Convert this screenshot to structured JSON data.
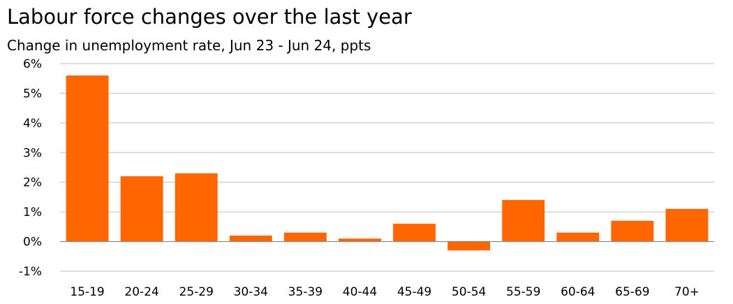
{
  "chart_data": {
    "type": "bar",
    "title": "Labour force changes over the last year",
    "subtitle": "Change in unemployment rate, Jun 23  - Jun 24, ppts",
    "categories": [
      "15-19",
      "20-24",
      "25-29",
      "30-34",
      "35-39",
      "40-44",
      "45-49",
      "50-54",
      "55-59",
      "60-64",
      "65-69",
      "70+"
    ],
    "values": [
      5.6,
      2.2,
      2.3,
      0.2,
      0.3,
      0.1,
      0.6,
      -0.3,
      1.4,
      0.3,
      0.7,
      1.1
    ],
    "ylim": [
      -1,
      6
    ],
    "yticks": [
      6,
      5,
      4,
      3,
      2,
      1,
      0,
      -1
    ],
    "ytick_labels": [
      "6%",
      "5%",
      "4%",
      "3%",
      "2%",
      "1%",
      "0%",
      "-1%"
    ],
    "grid": true,
    "bar_color": "#FF6600",
    "grid_color": "#BFBFBF"
  }
}
